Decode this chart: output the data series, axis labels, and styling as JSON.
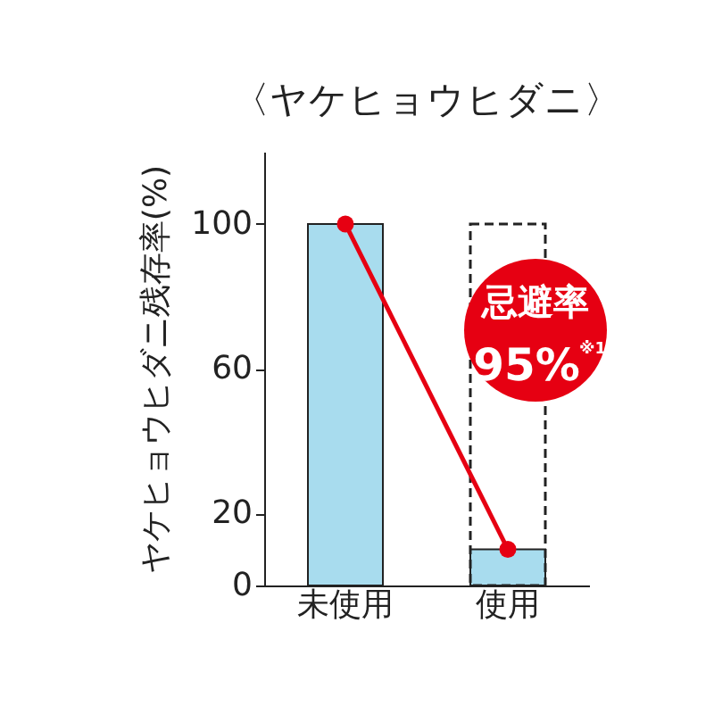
{
  "chart_data": {
    "type": "bar",
    "title": "〈ヤケヒョウヒダニ〉",
    "ylabel": "ヤケヒョウヒダニ残存率(%)",
    "categories": [
      "未使用",
      "使用"
    ],
    "series": [
      {
        "color": "#a8dcee",
        "values": [
          100,
          10
        ]
      },
      {
        "type": "bar",
        "color": "#222222",
        "line_style": "dashed",
        "values": [
          null,
          100
        ]
      },
      {
        "type": "line",
        "color": "#e60012",
        "marker": "circle",
        "values": [
          100,
          10
        ]
      }
    ],
    "ylim": [
      0,
      120
    ],
    "yticks": [
      0,
      20,
      60,
      100
    ],
    "grid": false,
    "annotations": [
      "忌避率",
      "95%",
      "※1"
    ]
  }
}
